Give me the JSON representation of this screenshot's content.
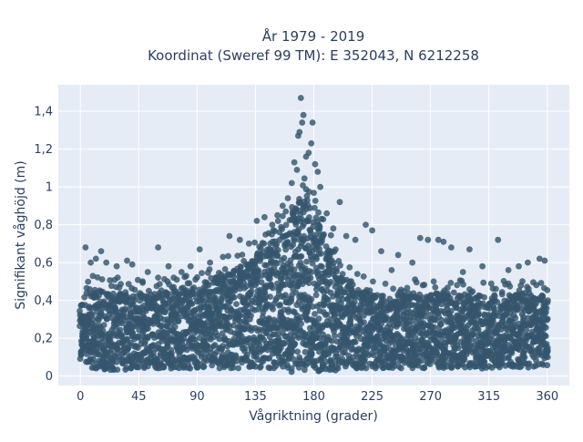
{
  "chart_data": {
    "type": "scatter",
    "title_line1": "År 1979 - 2019",
    "title_line2": "Koordinat (Sweref 99 TM): E 352043, N 6212258",
    "xlabel": "Vågriktning (grader)",
    "ylabel": "Signifikant våghöjd (m)",
    "xlim": [
      -17,
      377
    ],
    "ylim": [
      -0.05,
      1.54
    ],
    "x_ticks": [
      0,
      45,
      90,
      135,
      180,
      225,
      270,
      315,
      360
    ],
    "x_tick_labels": [
      "0",
      "45",
      "90",
      "135",
      "180",
      "225",
      "270",
      "315",
      "360"
    ],
    "y_ticks": [
      0,
      0.2,
      0.4,
      0.6,
      0.8,
      1.0,
      1.2,
      1.4
    ],
    "y_tick_labels": [
      "0",
      "0,2",
      "0,4",
      "0,6",
      "0,8",
      "1",
      "1,2",
      "1,4"
    ],
    "grid": true,
    "marker_color": "#34566c",
    "plot_background": "#e5ecf6",
    "envelope": {
      "x": [
        0,
        10,
        20,
        30,
        45,
        60,
        75,
        90,
        105,
        120,
        135,
        150,
        160,
        165,
        170,
        175,
        180,
        190,
        200,
        210,
        225,
        240,
        255,
        270,
        285,
        300,
        315,
        330,
        345,
        360
      ],
      "upper": [
        0.42,
        0.46,
        0.45,
        0.44,
        0.44,
        0.45,
        0.45,
        0.46,
        0.52,
        0.58,
        0.63,
        0.72,
        0.82,
        0.88,
        0.95,
        0.98,
        0.9,
        0.72,
        0.56,
        0.48,
        0.44,
        0.42,
        0.43,
        0.44,
        0.44,
        0.42,
        0.42,
        0.44,
        0.44,
        0.42
      ],
      "lower": [
        0.05,
        0.03,
        0.03,
        0.03,
        0.04,
        0.04,
        0.04,
        0.04,
        0.04,
        0.04,
        0.04,
        0.03,
        0.02,
        0.02,
        0.02,
        0.02,
        0.02,
        0.03,
        0.03,
        0.04,
        0.04,
        0.04,
        0.04,
        0.04,
        0.04,
        0.04,
        0.04,
        0.04,
        0.04,
        0.05
      ]
    },
    "outliers": [
      {
        "x": 4,
        "y": 0.68
      },
      {
        "x": 16,
        "y": 0.66
      },
      {
        "x": 8,
        "y": 0.6
      },
      {
        "x": 12,
        "y": 0.62
      },
      {
        "x": 20,
        "y": 0.6
      },
      {
        "x": 28,
        "y": 0.58
      },
      {
        "x": 36,
        "y": 0.61
      },
      {
        "x": 40,
        "y": 0.59
      },
      {
        "x": 52,
        "y": 0.55
      },
      {
        "x": 60,
        "y": 0.68
      },
      {
        "x": 68,
        "y": 0.58
      },
      {
        "x": 78,
        "y": 0.55
      },
      {
        "x": 85,
        "y": 0.58
      },
      {
        "x": 92,
        "y": 0.67
      },
      {
        "x": 100,
        "y": 0.6
      },
      {
        "x": 110,
        "y": 0.63
      },
      {
        "x": 115,
        "y": 0.74
      },
      {
        "x": 123,
        "y": 0.72
      },
      {
        "x": 130,
        "y": 0.7
      },
      {
        "x": 136,
        "y": 0.82
      },
      {
        "x": 142,
        "y": 0.84
      },
      {
        "x": 148,
        "y": 0.8
      },
      {
        "x": 152,
        "y": 0.85
      },
      {
        "x": 156,
        "y": 0.9
      },
      {
        "x": 160,
        "y": 0.94
      },
      {
        "x": 163,
        "y": 1.02
      },
      {
        "x": 165,
        "y": 1.13
      },
      {
        "x": 167,
        "y": 1.09
      },
      {
        "x": 168,
        "y": 1.27
      },
      {
        "x": 169,
        "y": 1.29
      },
      {
        "x": 170,
        "y": 1.47
      },
      {
        "x": 171,
        "y": 1.34
      },
      {
        "x": 172,
        "y": 1.38
      },
      {
        "x": 174,
        "y": 1.16
      },
      {
        "x": 176,
        "y": 1.18
      },
      {
        "x": 178,
        "y": 1.23
      },
      {
        "x": 179,
        "y": 1.34
      },
      {
        "x": 181,
        "y": 1.12
      },
      {
        "x": 183,
        "y": 1.08
      },
      {
        "x": 185,
        "y": 1.0
      },
      {
        "x": 190,
        "y": 0.86
      },
      {
        "x": 195,
        "y": 0.78
      },
      {
        "x": 200,
        "y": 0.92
      },
      {
        "x": 205,
        "y": 0.74
      },
      {
        "x": 212,
        "y": 0.72
      },
      {
        "x": 220,
        "y": 0.8
      },
      {
        "x": 225,
        "y": 0.77
      },
      {
        "x": 232,
        "y": 0.66
      },
      {
        "x": 245,
        "y": 0.64
      },
      {
        "x": 256,
        "y": 0.6
      },
      {
        "x": 262,
        "y": 0.73
      },
      {
        "x": 268,
        "y": 0.72
      },
      {
        "x": 276,
        "y": 0.72
      },
      {
        "x": 280,
        "y": 0.71
      },
      {
        "x": 286,
        "y": 0.68
      },
      {
        "x": 300,
        "y": 0.67
      },
      {
        "x": 310,
        "y": 0.58
      },
      {
        "x": 322,
        "y": 0.72
      },
      {
        "x": 330,
        "y": 0.56
      },
      {
        "x": 338,
        "y": 0.58
      },
      {
        "x": 345,
        "y": 0.6
      },
      {
        "x": 354,
        "y": 0.62
      },
      {
        "x": 358,
        "y": 0.61
      },
      {
        "x": 48,
        "y": 0.5
      },
      {
        "x": 72,
        "y": 0.52
      },
      {
        "x": 240,
        "y": 0.56
      },
      {
        "x": 295,
        "y": 0.55
      }
    ]
  }
}
